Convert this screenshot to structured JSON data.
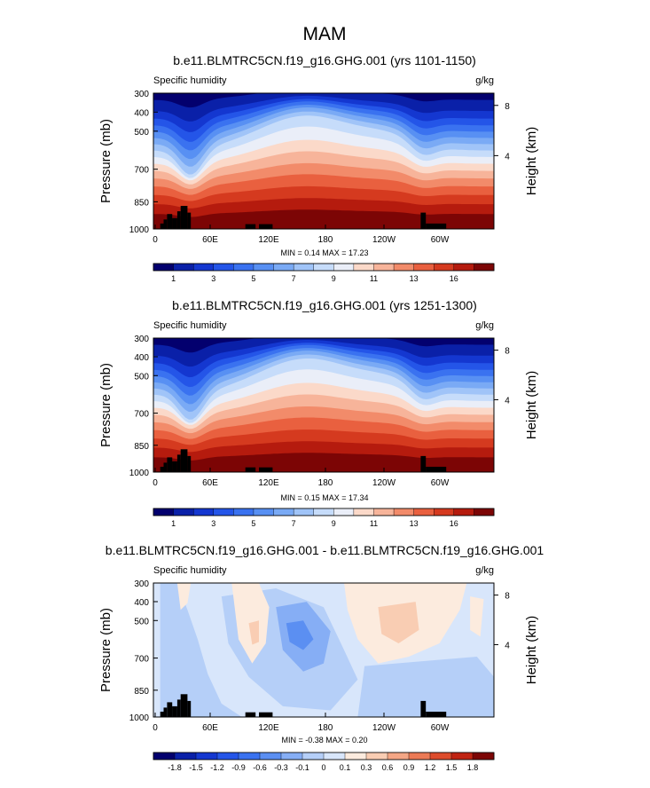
{
  "page_title": "MAM",
  "chart_data": [
    {
      "type": "heatmap",
      "title": "b.e11.BLMTRC5CN.f19_g16.GHG.001 (yrs 1101-1150)",
      "variable": "Specific humidity",
      "units": "g/kg",
      "ylabel": "Pressure (mb)",
      "ylabel_right": "Height (km)",
      "x_ticks": [
        "0",
        "60E",
        "120E",
        "180",
        "120W",
        "60W"
      ],
      "y_ticks": [
        "300",
        "400",
        "500",
        "700",
        "850",
        "1000"
      ],
      "height_ticks": [
        "8",
        "4"
      ],
      "stats": "MIN =   0.14  MAX =  17.23",
      "min": 0.14,
      "max": 17.23,
      "colorbar_labels": [
        "1",
        "3",
        "5",
        "7",
        "9",
        "11",
        "13",
        "16"
      ],
      "levels": [
        0.5,
        1,
        2,
        3,
        4,
        5,
        6,
        7,
        8,
        9,
        10,
        11,
        12,
        13,
        14,
        16
      ]
    },
    {
      "type": "heatmap",
      "title": "b.e11.BLMTRC5CN.f19_g16.GHG.001 (yrs 1251-1300)",
      "variable": "Specific humidity",
      "units": "g/kg",
      "ylabel": "Pressure (mb)",
      "ylabel_right": "Height (km)",
      "x_ticks": [
        "0",
        "60E",
        "120E",
        "180",
        "120W",
        "60W"
      ],
      "y_ticks": [
        "300",
        "400",
        "500",
        "700",
        "850",
        "1000"
      ],
      "height_ticks": [
        "8",
        "4"
      ],
      "stats": "MIN =   0.15  MAX =  17.34",
      "min": 0.15,
      "max": 17.34,
      "colorbar_labels": [
        "1",
        "3",
        "5",
        "7",
        "9",
        "11",
        "13",
        "16"
      ],
      "levels": [
        0.5,
        1,
        2,
        3,
        4,
        5,
        6,
        7,
        8,
        9,
        10,
        11,
        12,
        13,
        14,
        16
      ]
    },
    {
      "type": "heatmap",
      "title": "b.e11.BLMTRC5CN.f19_g16.GHG.001 - b.e11.BLMTRC5CN.f19_g16.GHG.001",
      "variable": "Specific humidity",
      "units": "g/kg",
      "ylabel": "Pressure (mb)",
      "ylabel_right": "Height (km)",
      "x_ticks": [
        "0",
        "60E",
        "120E",
        "180",
        "120W",
        "60W"
      ],
      "y_ticks": [
        "300",
        "400",
        "500",
        "700",
        "850",
        "1000"
      ],
      "height_ticks": [
        "8",
        "4"
      ],
      "stats": "MIN =  -0.38  MAX =   0.20",
      "min": -0.38,
      "max": 0.2,
      "colorbar_labels": [
        "-1.8",
        "-1.5",
        "-1.2",
        "-0.9",
        "-0.6",
        "-0.3",
        "-0.1",
        "0",
        "0.1",
        "0.3",
        "0.6",
        "0.9",
        "1.2",
        "1.5",
        "1.8"
      ],
      "levels": [
        -1.8,
        -1.5,
        -1.2,
        -0.9,
        -0.6,
        -0.3,
        -0.1,
        0,
        0.1,
        0.3,
        0.6,
        0.9,
        1.2,
        1.5,
        1.8
      ]
    }
  ],
  "colors": {
    "humidity_scale": [
      "#03006e",
      "#0a20a8",
      "#1437d0",
      "#2455e8",
      "#3a72f0",
      "#5890f3",
      "#7aaaf5",
      "#a0c4f8",
      "#c6dcfa",
      "#eaeef8",
      "#fbd9c9",
      "#f7b49a",
      "#f28b6a",
      "#e9603f",
      "#d53a1f",
      "#b51b0e",
      "#7c0505"
    ],
    "difference_scale": [
      "#03006e",
      "#0a20a8",
      "#1437d0",
      "#2455e8",
      "#3a72f0",
      "#5b8ff2",
      "#86aef5",
      "#b5cff8",
      "#d8e6fb",
      "#fcebde",
      "#f9cdb3",
      "#f4a685",
      "#ec7a56",
      "#dd4c2c",
      "#c02312",
      "#7c0505"
    ],
    "topography": "#000000"
  }
}
